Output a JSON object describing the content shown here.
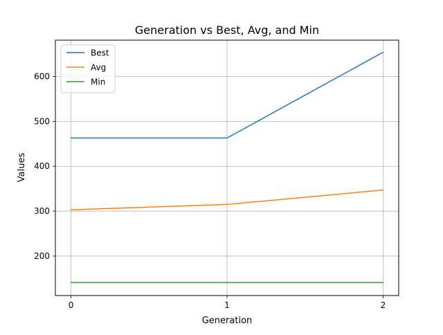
{
  "chart_data": {
    "type": "line",
    "title": "Generation vs Best, Avg, and Min",
    "xlabel": "Generation",
    "ylabel": "Values",
    "x": [
      0,
      1,
      2
    ],
    "xlim": [
      -0.1,
      2.1
    ],
    "ylim": [
      112,
      681
    ],
    "xticks": [
      0,
      1,
      2
    ],
    "yticks": [
      200,
      300,
      400,
      500,
      600
    ],
    "grid": true,
    "legend_position": "top-left",
    "series": [
      {
        "name": "Best",
        "color": "#1f77b4",
        "values": [
          463,
          463,
          654
        ]
      },
      {
        "name": "Avg",
        "color": "#ff7f0e",
        "values": [
          303,
          315,
          347
        ]
      },
      {
        "name": "Min",
        "color": "#2ca02c",
        "values": [
          141,
          141,
          141
        ]
      }
    ]
  }
}
